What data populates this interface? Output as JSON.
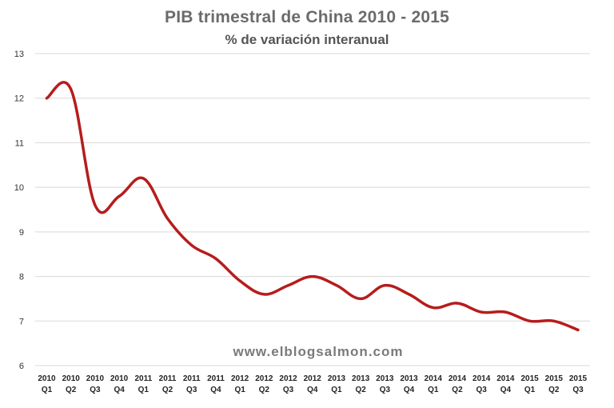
{
  "chart_data": {
    "type": "line",
    "title": "PIB  trimestral de China 2010 - 2015",
    "subtitle": "% de variación interanual",
    "watermark": "www.elblogsalmon.com",
    "xlabel": "",
    "ylabel": "",
    "ylim": [
      6,
      13
    ],
    "yticks": [
      "6",
      "7",
      "8",
      "9",
      "10",
      "11",
      "12",
      "13"
    ],
    "grid": true,
    "categories": [
      {
        "year": "2010",
        "q": "Q1"
      },
      {
        "year": "2010",
        "q": "Q2"
      },
      {
        "year": "2010",
        "q": "Q3"
      },
      {
        "year": "2010",
        "q": "Q4"
      },
      {
        "year": "2011",
        "q": "Q1"
      },
      {
        "year": "2011",
        "q": "Q2"
      },
      {
        "year": "2011",
        "q": "Q3"
      },
      {
        "year": "2011",
        "q": "Q4"
      },
      {
        "year": "2012",
        "q": "Q1"
      },
      {
        "year": "2012",
        "q": "Q2"
      },
      {
        "year": "2012",
        "q": "Q3"
      },
      {
        "year": "2012",
        "q": "Q4"
      },
      {
        "year": "2013",
        "q": "Q1"
      },
      {
        "year": "2013",
        "q": "Q2"
      },
      {
        "year": "2013",
        "q": "Q3"
      },
      {
        "year": "2013",
        "q": "Q4"
      },
      {
        "year": "2014",
        "q": "Q1"
      },
      {
        "year": "2014",
        "q": "Q2"
      },
      {
        "year": "2014",
        "q": "Q3"
      },
      {
        "year": "2014",
        "q": "Q4"
      },
      {
        "year": "2015",
        "q": "Q1"
      },
      {
        "year": "2015",
        "q": "Q2"
      },
      {
        "year": "2015",
        "q": "Q3"
      }
    ],
    "series": [
      {
        "name": "PIB trimestral China",
        "color": "#b71c1c",
        "values": [
          12.0,
          12.2,
          9.6,
          9.8,
          10.2,
          9.3,
          8.7,
          8.4,
          7.9,
          7.6,
          7.8,
          8.0,
          7.8,
          7.5,
          7.8,
          7.6,
          7.3,
          7.4,
          7.2,
          7.2,
          7.0,
          7.0,
          6.8
        ]
      }
    ]
  }
}
